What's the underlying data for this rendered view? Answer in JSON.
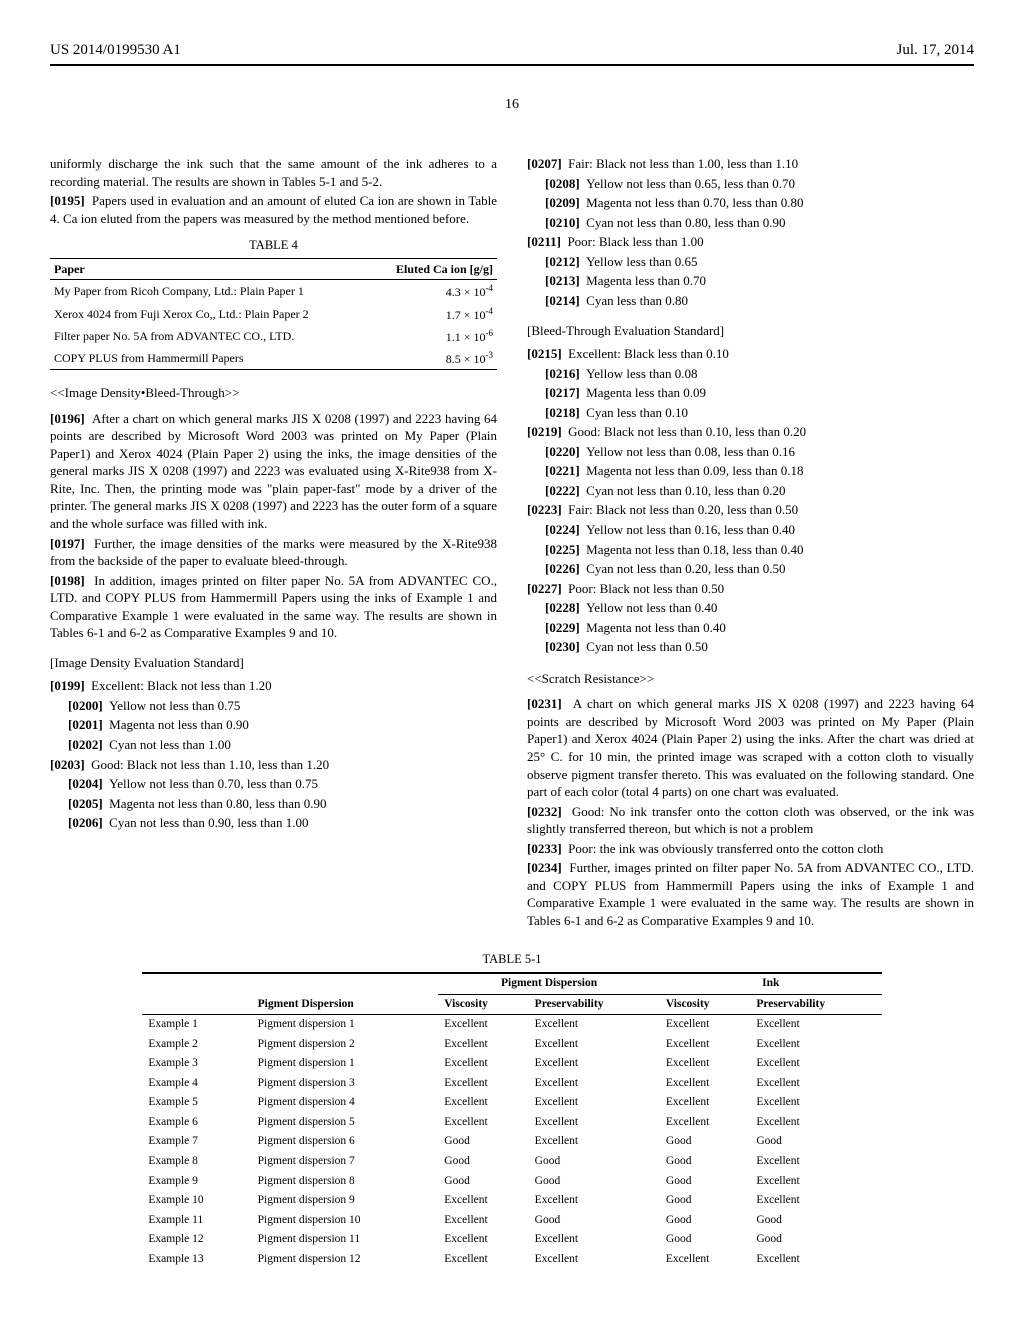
{
  "header": {
    "pub_num": "US 2014/0199530 A1",
    "date": "Jul. 17, 2014",
    "page": "16"
  },
  "col1": {
    "p_intro": "uniformly discharge the ink such that the same amount of the ink adheres to a recording material. The results are shown in Tables 5-1 and 5-2.",
    "p0195_num": "[0195]",
    "p0195": "Papers used in evaluation and an amount of eluted Ca ion are shown in Table 4. Ca ion eluted from the papers was measured by the method mentioned before.",
    "table4": {
      "caption": "TABLE 4",
      "head_paper": "Paper",
      "head_ion": "Eluted Ca ion [g/g]",
      "rows": [
        {
          "p": "My Paper from Ricoh Company, Ltd.: Plain Paper 1",
          "v": "4.3 × 10⁻⁴"
        },
        {
          "p": "Xerox 4024 from Fuji Xerox Co,, Ltd.: Plain Paper 2",
          "v": "1.7 × 10⁻⁴"
        },
        {
          "p": "Filter paper No. 5A from ADVANTEC CO., LTD.",
          "v": "1.1 × 10⁻⁶"
        },
        {
          "p": "COPY PLUS from Hammermill Papers",
          "v": "8.5 × 10⁻³"
        }
      ]
    },
    "sec_density": "<<Image Density•Bleed-Through>>",
    "p0196_num": "[0196]",
    "p0196": "After a chart on which general marks JIS X 0208 (1997) and 2223 having 64 points are described by Microsoft Word 2003 was printed on My Paper (Plain Paper1) and Xerox 4024 (Plain Paper 2) using the inks, the image densities of the general marks JIS X 0208 (1997) and 2223 was evaluated using X-Rite938 from X-Rite, Inc. Then, the printing mode was \"plain paper-fast\" mode by a driver of the printer. The general marks JIS X 0208 (1997) and 2223 has the outer form of a square and the whole surface was filled with ink.",
    "p0197_num": "[0197]",
    "p0197": "Further, the image densities of the marks were measured by the X-Rite938 from the backside of the paper to evaluate bleed-through.",
    "p0198_num": "[0198]",
    "p0198": "In addition, images printed on filter paper No. 5A from ADVANTEC CO., LTD. and COPY PLUS from Hammermill Papers using the inks of Example 1 and Comparative Example 1 were evaluated in the same way. The results are shown in Tables 6-1 and 6-2 as Comparative Examples 9 and 10.",
    "sub_density": "[Image Density Evaluation Standard]",
    "std": [
      {
        "n": "[0199]",
        "t": "Excellent: Black not less than 1.20"
      },
      {
        "n": "[0200]",
        "t": "Yellow not less than 0.75"
      },
      {
        "n": "[0201]",
        "t": "Magenta not less than 0.90"
      },
      {
        "n": "[0202]",
        "t": "Cyan not less than 1.00"
      },
      {
        "n": "[0203]",
        "t": "Good: Black not less than 1.10, less than 1.20"
      },
      {
        "n": "[0204]",
        "t": "Yellow not less than 0.70, less than 0.75"
      },
      {
        "n": "[0205]",
        "t": "Magenta not less than 0.80, less than 0.90"
      },
      {
        "n": "[0206]",
        "t": "Cyan not less than 0.90, less than 1.00"
      }
    ]
  },
  "col2": {
    "std_fair": [
      {
        "n": "[0207]",
        "t": "Fair: Black not less than 1.00, less than 1.10"
      },
      {
        "n": "[0208]",
        "t": "Yellow not less than 0.65, less than 0.70"
      },
      {
        "n": "[0209]",
        "t": "Magenta not less than 0.70, less than 0.80"
      },
      {
        "n": "[0210]",
        "t": "Cyan not less than 0.80, less than 0.90"
      },
      {
        "n": "[0211]",
        "t": "Poor: Black less than 1.00"
      },
      {
        "n": "[0212]",
        "t": "Yellow less than 0.65"
      },
      {
        "n": "[0213]",
        "t": "Magenta less than 0.70"
      },
      {
        "n": "[0214]",
        "t": "Cyan less than 0.80"
      }
    ],
    "sub_bleed": "[Bleed-Through Evaluation Standard]",
    "std_bleed": [
      {
        "n": "[0215]",
        "t": "Excellent: Black less than 0.10"
      },
      {
        "n": "[0216]",
        "t": "Yellow less than 0.08"
      },
      {
        "n": "[0217]",
        "t": "Magenta less than 0.09"
      },
      {
        "n": "[0218]",
        "t": "Cyan less than 0.10"
      },
      {
        "n": "[0219]",
        "t": "Good: Black not less than 0.10, less than 0.20"
      },
      {
        "n": "[0220]",
        "t": "Yellow not less than 0.08, less than 0.16"
      },
      {
        "n": "[0221]",
        "t": "Magenta not less than 0.09, less than 0.18"
      },
      {
        "n": "[0222]",
        "t": "Cyan not less than 0.10, less than 0.20"
      },
      {
        "n": "[0223]",
        "t": "Fair: Black not less than 0.20, less than 0.50"
      },
      {
        "n": "[0224]",
        "t": "Yellow not less than 0.16, less than 0.40"
      },
      {
        "n": "[0225]",
        "t": "Magenta not less than 0.18, less than 0.40"
      },
      {
        "n": "[0226]",
        "t": "Cyan not less than 0.20, less than 0.50"
      },
      {
        "n": "[0227]",
        "t": "Poor: Black not less than 0.50"
      },
      {
        "n": "[0228]",
        "t": "Yellow not less than 0.40"
      },
      {
        "n": "[0229]",
        "t": "Magenta not less than 0.40"
      },
      {
        "n": "[0230]",
        "t": "Cyan not less than 0.50"
      }
    ],
    "sec_scratch": "<<Scratch Resistance>>",
    "p0231_num": "[0231]",
    "p0231": "A chart on which general marks JIS X 0208 (1997) and 2223 having 64 points are described by Microsoft Word 2003 was printed on My Paper (Plain Paper1) and Xerox 4024 (Plain Paper 2) using the inks. After the chart was dried at 25° C. for 10 min, the printed image was scraped with a cotton cloth to visually observe pigment transfer thereto. This was evaluated on the following standard. One part of each color (total 4 parts) on one chart was evaluated.",
    "p0232_num": "[0232]",
    "p0232": "Good: No ink transfer onto the cotton cloth was observed, or the ink was slightly transferred thereon, but which is not a problem",
    "p0233_num": "[0233]",
    "p0233": "Poor: the ink was obviously transferred onto the cotton cloth",
    "p0234_num": "[0234]",
    "p0234": "Further, images printed on filter paper No. 5A from ADVANTEC CO., LTD. and COPY PLUS from Hammermill Papers using the inks of Example 1 and Comparative Example 1 were evaluated in the same way. The results are shown in Tables 6-1 and 6-2 as Comparative Examples 9 and 10."
  },
  "table51": {
    "caption": "TABLE 5-1",
    "group_pd": "Pigment Dispersion",
    "group_ink": "Ink",
    "h_pd": "Pigment Dispersion",
    "h_visc": "Viscosity",
    "h_pres": "Preservability",
    "rows": [
      {
        "e": "Example 1",
        "pd": "Pigment dispersion 1",
        "pv": "Excellent",
        "pp": "Excellent",
        "iv": "Excellent",
        "ip": "Excellent"
      },
      {
        "e": "Example 2",
        "pd": "Pigment dispersion 2",
        "pv": "Excellent",
        "pp": "Excellent",
        "iv": "Excellent",
        "ip": "Excellent"
      },
      {
        "e": "Example 3",
        "pd": "Pigment dispersion 1",
        "pv": "Excellent",
        "pp": "Excellent",
        "iv": "Excellent",
        "ip": "Excellent"
      },
      {
        "e": "Example 4",
        "pd": "Pigment dispersion 3",
        "pv": "Excellent",
        "pp": "Excellent",
        "iv": "Excellent",
        "ip": "Excellent"
      },
      {
        "e": "Example 5",
        "pd": "Pigment dispersion 4",
        "pv": "Excellent",
        "pp": "Excellent",
        "iv": "Excellent",
        "ip": "Excellent"
      },
      {
        "e": "Example 6",
        "pd": "Pigment dispersion 5",
        "pv": "Excellent",
        "pp": "Excellent",
        "iv": "Excellent",
        "ip": "Excellent"
      },
      {
        "e": "Example 7",
        "pd": "Pigment dispersion 6",
        "pv": "Good",
        "pp": "Excellent",
        "iv": "Good",
        "ip": "Good"
      },
      {
        "e": "Example 8",
        "pd": "Pigment dispersion 7",
        "pv": "Good",
        "pp": "Good",
        "iv": "Good",
        "ip": "Excellent"
      },
      {
        "e": "Example 9",
        "pd": "Pigment dispersion 8",
        "pv": "Good",
        "pp": "Good",
        "iv": "Good",
        "ip": "Excellent"
      },
      {
        "e": "Example 10",
        "pd": "Pigment dispersion 9",
        "pv": "Excellent",
        "pp": "Excellent",
        "iv": "Good",
        "ip": "Excellent"
      },
      {
        "e": "Example 11",
        "pd": "Pigment dispersion 10",
        "pv": "Excellent",
        "pp": "Good",
        "iv": "Good",
        "ip": "Good"
      },
      {
        "e": "Example 12",
        "pd": "Pigment dispersion 11",
        "pv": "Excellent",
        "pp": "Excellent",
        "iv": "Good",
        "ip": "Good"
      },
      {
        "e": "Example 13",
        "pd": "Pigment dispersion 12",
        "pv": "Excellent",
        "pp": "Excellent",
        "iv": "Excellent",
        "ip": "Excellent"
      }
    ]
  }
}
